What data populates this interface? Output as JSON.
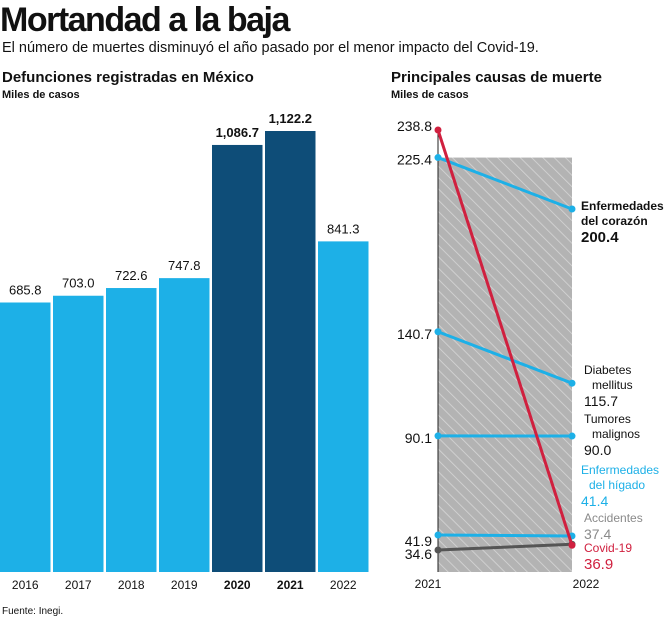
{
  "title": "Mortandad a la baja",
  "subtitle": "El número de muertes disminuyó el año pasado por el menor impacto del Covid-19.",
  "source": "Fuente: Inegi.",
  "colors": {
    "light_blue": "#1db0e7",
    "dark_blue": "#0e4d78",
    "red": "#d0203f",
    "gray_line": "#555555",
    "gray_fill": "#b3b3b3"
  },
  "chart_data": [
    {
      "type": "bar",
      "title": "Defunciones registradas en México",
      "ylabel": "Miles de casos",
      "categories": [
        "2016",
        "2017",
        "2018",
        "2019",
        "2020",
        "2021",
        "2022"
      ],
      "values": [
        685.8,
        703.0,
        722.6,
        747.8,
        1086.7,
        1122.2,
        841.3
      ],
      "value_labels": [
        "685.8",
        "703.0",
        "722.6",
        "747.8",
        "1,086.7",
        "1,122.2",
        "841.3"
      ],
      "highlighted": [
        "2020",
        "2021"
      ]
    },
    {
      "type": "line",
      "title": "Principales causas de muerte",
      "ylabel": "Miles de casos",
      "x": [
        "2021",
        "2022"
      ],
      "series": [
        {
          "name": "Enfermedades del corazón",
          "label_lines": [
            "Enfermedades",
            "del corazón"
          ],
          "values": [
            225.4,
            200.4
          ],
          "start_label": "225.4",
          "end_label": "200.4",
          "color": "#1db0e7",
          "text_color": "#111111"
        },
        {
          "name": "Diabetes mellitus",
          "label_lines": [
            "Diabetes",
            "mellitus"
          ],
          "values": [
            140.7,
            115.7
          ],
          "start_label": "140.7",
          "end_label": "115.7",
          "color": "#1db0e7",
          "text_color": "#111111"
        },
        {
          "name": "Tumores malignos",
          "label_lines": [
            "Tumores",
            "malignos"
          ],
          "values": [
            90.1,
            90.0
          ],
          "start_label": "90.1",
          "end_label": "90.0",
          "color": "#1db0e7",
          "text_color": "#111111"
        },
        {
          "name": "Enfermedades del hígado",
          "label_lines": [
            "Enfermedades",
            "del hígado"
          ],
          "values": [
            41.9,
            41.4
          ],
          "start_label": "41.9",
          "end_label": "41.4",
          "color": "#1db0e7",
          "text_color": "#1db0e7"
        },
        {
          "name": "Accidentes",
          "label_lines": [
            "Accidentes"
          ],
          "values": [
            34.6,
            37.4
          ],
          "start_label": "34.6",
          "end_label": "37.4",
          "color": "#555555",
          "text_color": "#8a8a8a"
        },
        {
          "name": "Covid-19",
          "label_lines": [
            "Covid-19"
          ],
          "values": [
            238.8,
            36.9
          ],
          "start_label": "238.8",
          "end_label": "36.9",
          "color": "#d0203f",
          "text_color": "#d0203f"
        }
      ]
    }
  ]
}
